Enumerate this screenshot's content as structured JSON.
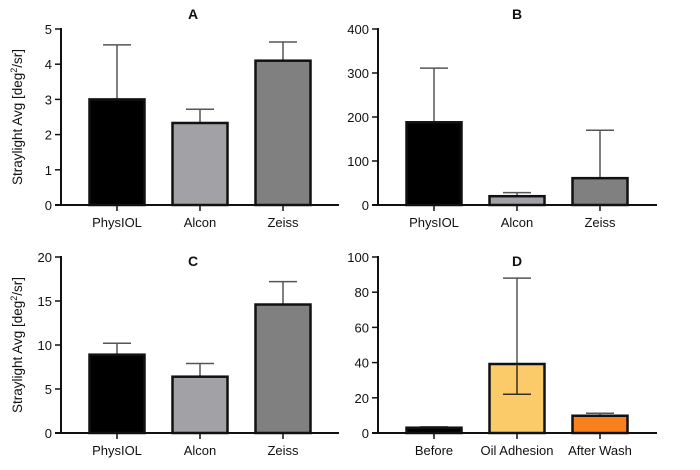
{
  "chart_data": [
    {
      "panel": "A",
      "type": "bar",
      "title": "A",
      "ylabel": "Straylight Avg  [deg²/sr]",
      "ylabel_base": "Straylight Avg  [deg",
      "ylabel_sup": "2",
      "ylabel_tail": "/sr]",
      "xlabel": "",
      "ylim": [
        0,
        5
      ],
      "yticks": [
        0,
        1,
        2,
        3,
        4,
        5
      ],
      "categories": [
        "PhysIOL",
        "Alcon",
        "Zeiss"
      ],
      "values": [
        3.0,
        2.33,
        4.1
      ],
      "error_upper": [
        4.55,
        2.72,
        4.63
      ],
      "error_lower": [
        null,
        null,
        null
      ],
      "colors": [
        "#000000",
        "#A2A2A6",
        "#808080"
      ]
    },
    {
      "panel": "B",
      "type": "bar",
      "title": "B",
      "ylabel": "",
      "xlabel": "",
      "ylim": [
        0,
        400
      ],
      "yticks": [
        0,
        100,
        200,
        300,
        400
      ],
      "categories": [
        "PhysIOL",
        "Alcon",
        "Zeiss"
      ],
      "values": [
        188,
        20,
        61
      ],
      "error_upper": [
        311,
        28,
        170
      ],
      "error_lower": [
        null,
        null,
        null
      ],
      "colors": [
        "#000000",
        "#A2A2A6",
        "#808080"
      ]
    },
    {
      "panel": "C",
      "type": "bar",
      "title": "C",
      "ylabel": "Straylight Avg  [deg²/sr]",
      "ylabel_base": "Straylight Avg  [deg",
      "ylabel_sup": "2",
      "ylabel_tail": "/sr]",
      "xlabel": "",
      "ylim": [
        0,
        20
      ],
      "yticks": [
        0,
        5,
        10,
        15,
        20
      ],
      "categories": [
        "PhysIOL",
        "Alcon",
        "Zeiss"
      ],
      "values": [
        8.9,
        6.4,
        14.6
      ],
      "error_upper": [
        10.2,
        7.9,
        17.2
      ],
      "error_lower": [
        null,
        null,
        null
      ],
      "colors": [
        "#000000",
        "#A2A2A6",
        "#808080"
      ]
    },
    {
      "panel": "D",
      "type": "bar",
      "title": "D",
      "ylabel": "",
      "xlabel": "",
      "ylim": [
        0,
        100
      ],
      "yticks": [
        0,
        20,
        40,
        60,
        80,
        100
      ],
      "categories": [
        "Before",
        "Oil Adhesion",
        "After Wash"
      ],
      "values": [
        3.0,
        39.2,
        9.8
      ],
      "error_upper": [
        3.5,
        88,
        11.2
      ],
      "error_lower": [
        null,
        22,
        null
      ],
      "colors": [
        "#000000",
        "#FBCB6A",
        "#F8811E"
      ]
    }
  ]
}
